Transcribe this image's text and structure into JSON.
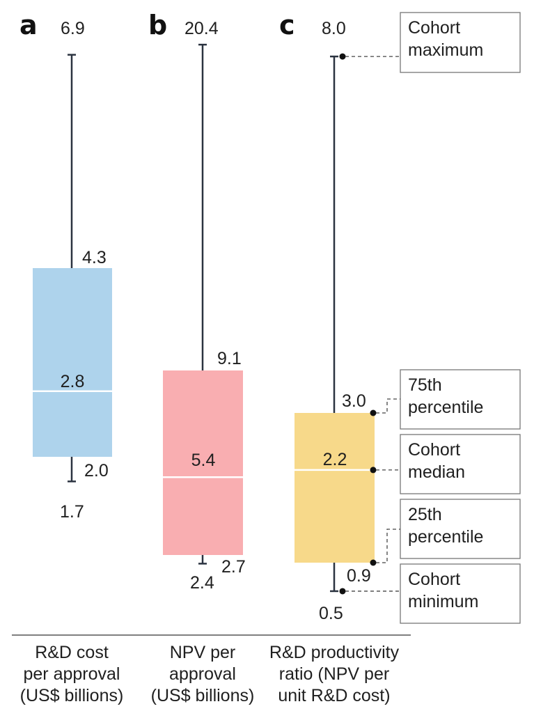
{
  "chart_data": {
    "type": "boxplot",
    "panels": [
      {
        "letter": "a",
        "name_lines": [
          "R&D cost",
          "per approval",
          "(US$ billions)"
        ],
        "color": "#aed3ec",
        "stats": {
          "max": 6.9,
          "q3": 4.3,
          "median": 2.8,
          "q1": 2.0,
          "min": 1.7
        },
        "labels": {
          "max": "6.9",
          "q3": "4.3",
          "median": "2.8",
          "q1": "2.0",
          "min": "1.7"
        }
      },
      {
        "letter": "b",
        "name_lines": [
          "NPV per",
          "approval",
          "(US$ billions)"
        ],
        "color": "#f9aeb1",
        "stats": {
          "max": 20.4,
          "q3": 9.1,
          "median": 5.4,
          "q1": 2.7,
          "min": 2.4
        },
        "labels": {
          "max": "20.4",
          "q3": "9.1",
          "median": "5.4",
          "q1": "2.7",
          "min": "2.4"
        }
      },
      {
        "letter": "c",
        "name_lines": [
          "R&D productivity",
          "ratio (NPV per",
          "unit R&D cost)"
        ],
        "color": "#f7d98a",
        "stats": {
          "max": 8.0,
          "q3": 3.0,
          "median": 2.2,
          "q1": 0.9,
          "min": 0.5
        },
        "labels": {
          "max": "8.0",
          "q3": "3.0",
          "median": "2.2",
          "q1": "0.9",
          "min": "0.5"
        }
      }
    ],
    "legend": {
      "max": [
        "Cohort",
        "maximum"
      ],
      "q3": [
        "75th",
        "percentile"
      ],
      "median": [
        "Cohort",
        "median"
      ],
      "q1": [
        "25th",
        "percentile"
      ],
      "min": [
        "Cohort",
        "minimum"
      ]
    }
  }
}
